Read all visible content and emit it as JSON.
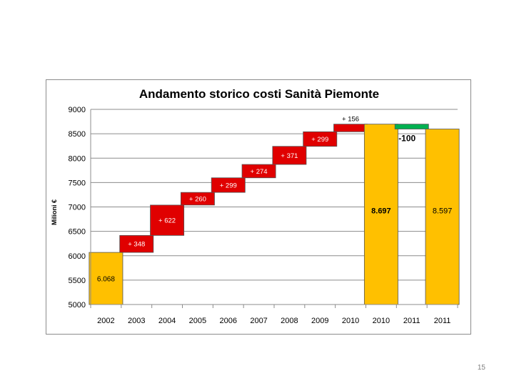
{
  "page_number": "15",
  "chart_data": {
    "type": "bar",
    "subtype": "waterfall",
    "title": "Andamento storico costi Sanità Piemonte",
    "xlabel": "",
    "ylabel": "Milioni €",
    "ylim": [
      5000,
      9000
    ],
    "yticks": [
      5000,
      5500,
      6000,
      6500,
      7000,
      7500,
      8000,
      8500,
      9000
    ],
    "grid": true,
    "legend": "none",
    "colors": {
      "total": "#FFC000",
      "increase": "#E00000",
      "decrease": "#00B050",
      "grid": "#8c8c8c"
    },
    "categories": [
      "2002",
      "2003",
      "2004",
      "2005",
      "2006",
      "2007",
      "2008",
      "2009",
      "2010",
      "2010",
      "2011",
      "2011"
    ],
    "bars": [
      {
        "category": "2002",
        "kind": "total",
        "start": 5000,
        "end": 6068,
        "label": "6.068"
      },
      {
        "category": "2003",
        "kind": "increase",
        "start": 6068,
        "end": 6416,
        "label": "+ 348"
      },
      {
        "category": "2004",
        "kind": "increase",
        "start": 6416,
        "end": 7038,
        "label": "+ 622"
      },
      {
        "category": "2005",
        "kind": "increase",
        "start": 7038,
        "end": 7298,
        "label": "+ 260"
      },
      {
        "category": "2006",
        "kind": "increase",
        "start": 7298,
        "end": 7597,
        "label": "+ 299"
      },
      {
        "category": "2007",
        "kind": "increase",
        "start": 7597,
        "end": 7871,
        "label": "+ 274"
      },
      {
        "category": "2008",
        "kind": "increase",
        "start": 7871,
        "end": 8242,
        "label": "+ 371"
      },
      {
        "category": "2009",
        "kind": "increase",
        "start": 8242,
        "end": 8541,
        "label": "+ 299"
      },
      {
        "category": "2010",
        "kind": "increase",
        "start": 8541,
        "end": 8697,
        "label": "+ 156"
      },
      {
        "category": "2010",
        "kind": "total",
        "start": 5000,
        "end": 8697,
        "label": "8.697"
      },
      {
        "category": "2011",
        "kind": "decrease",
        "start": 8697,
        "end": 8597,
        "label": "-100"
      },
      {
        "category": "2011",
        "kind": "total",
        "start": 5000,
        "end": 8597,
        "label": "8.597"
      }
    ]
  }
}
